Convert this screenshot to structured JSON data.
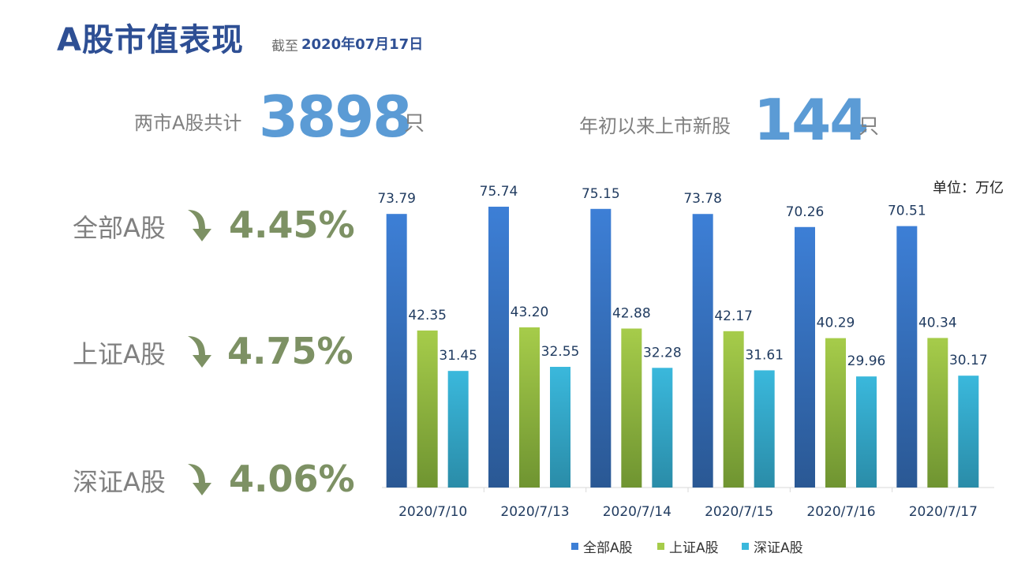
{
  "header": {
    "title": "A股市值表现",
    "date_prefix": "截至",
    "date_value": "2020年07月17日"
  },
  "stats": [
    {
      "label": "两市A股共计",
      "value": "3898",
      "unit": "只"
    },
    {
      "label": "年初以来上市新股",
      "value": "144",
      "unit": "只"
    }
  ],
  "markets": [
    {
      "name": "全部A股",
      "change": "4.45%",
      "direction": "down"
    },
    {
      "name": "上证A股",
      "change": "4.75%",
      "direction": "down"
    },
    {
      "name": "深证A股",
      "change": "4.06%",
      "direction": "down"
    }
  ],
  "colors": {
    "title": "#2e4f94",
    "stat_number": "#5b9bd5",
    "pct": "#7d9164",
    "arrow": "#7d9164"
  },
  "chart_data": {
    "type": "bar",
    "unit_note": "单位：万亿",
    "categories": [
      "2020/7/10",
      "2020/7/13",
      "2020/7/14",
      "2020/7/15",
      "2020/7/16",
      "2020/7/17"
    ],
    "series": [
      {
        "name": "全部A股",
        "values": [
          73.79,
          75.74,
          75.15,
          73.78,
          70.26,
          70.51
        ],
        "color_top": "#3d7fd6",
        "color_bottom": "#2a5894"
      },
      {
        "name": "上证A股",
        "values": [
          42.35,
          43.2,
          42.88,
          42.17,
          40.29,
          40.34
        ],
        "color_top": "#a6cc4a",
        "color_bottom": "#6f9431"
      },
      {
        "name": "深证A股",
        "values": [
          31.45,
          32.55,
          32.28,
          31.61,
          29.96,
          30.17
        ],
        "color_top": "#3ab8dc",
        "color_bottom": "#2a8ca8"
      }
    ],
    "ylim": [
      0,
      80
    ],
    "legend": "bottom",
    "grid": false
  }
}
